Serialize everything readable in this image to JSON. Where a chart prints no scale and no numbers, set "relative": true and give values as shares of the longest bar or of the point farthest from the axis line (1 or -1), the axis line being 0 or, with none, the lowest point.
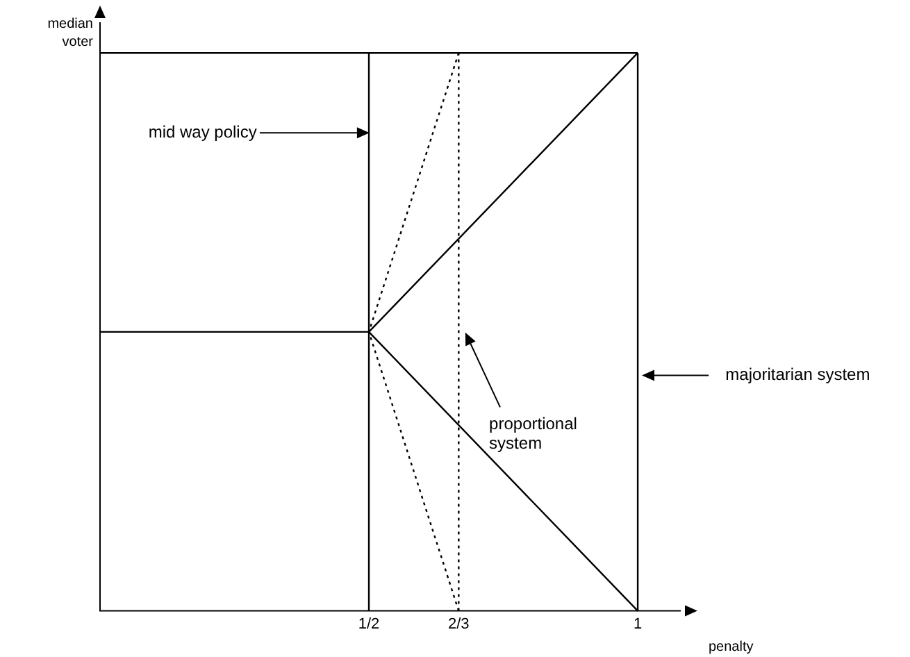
{
  "chart_data": {
    "type": "line",
    "relative": true,
    "xlabel": "penalty",
    "ylabel": "median voter",
    "xlim": [
      0,
      1.08
    ],
    "xticks": [
      {
        "value": 0.5,
        "label": "1/2"
      },
      {
        "value": 0.667,
        "label": "2/3"
      },
      {
        "value": 1,
        "label": "1"
      }
    ],
    "grid": false,
    "legend": false,
    "marker": "none",
    "series": [
      {
        "color": "#000000",
        "x": [
          0,
          1
        ],
        "values": [
          1,
          1
        ]
      },
      {
        "color": "#000000",
        "x": [
          0,
          0.5
        ],
        "values": [
          0.5,
          0.5
        ]
      },
      {
        "color": "#000000",
        "x": [
          0.5,
          0.5
        ],
        "values": [
          0,
          1
        ]
      },
      {
        "color": "#000000",
        "x": [
          1,
          0.5,
          1
        ],
        "values": [
          1,
          0.5,
          0
        ]
      },
      {
        "color": "#000000",
        "x": [
          0.667,
          0.5,
          0.667
        ],
        "values": [
          1,
          0.5,
          0
        ],
        "line_style": "dotted"
      },
      {
        "color": "#000000",
        "x": [
          0.667,
          0.667
        ],
        "values": [
          0,
          1
        ],
        "line_style": "dotted"
      },
      {
        "color": "#000000",
        "x": [
          1,
          1
        ],
        "values": [
          0,
          1
        ]
      }
    ],
    "annotations": [
      "mid way policy",
      "majoritarian system",
      "proportional system"
    ]
  }
}
